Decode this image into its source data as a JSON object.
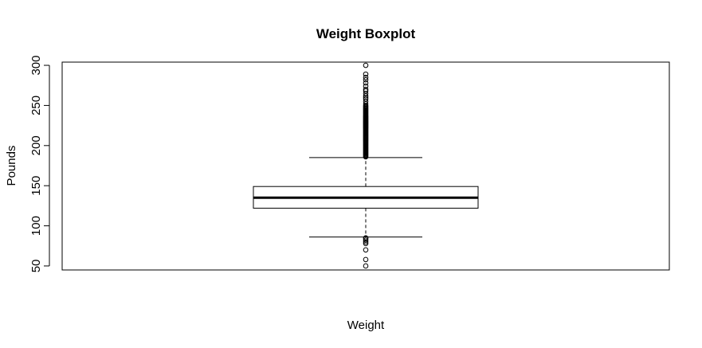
{
  "chart_data": {
    "type": "boxplot",
    "title": "Weight Boxplot",
    "xlabel": "Weight",
    "ylabel": "Pounds",
    "ylim": [
      45,
      304
    ],
    "yticks": [
      50,
      100,
      150,
      200,
      250,
      300
    ],
    "grid": false,
    "series": [
      {
        "whisker_low": 86,
        "q1": 122,
        "median": 135,
        "q3": 149,
        "whisker_high": 185,
        "outliers_low": [
          50,
          58,
          70,
          78,
          80,
          82,
          84,
          85
        ],
        "outliers_high": [
          186,
          187,
          188,
          189,
          190,
          191,
          192,
          193,
          194,
          195,
          196,
          197,
          198,
          199,
          200,
          201,
          202,
          203,
          204,
          205,
          206,
          207,
          208,
          209,
          210,
          211,
          212,
          213,
          214,
          215,
          216,
          217,
          218,
          219,
          220,
          221,
          222,
          223,
          224,
          225,
          226,
          227,
          228,
          229,
          230,
          231,
          232,
          233,
          234,
          235,
          236,
          237,
          238,
          239,
          240,
          241,
          242,
          243,
          244,
          245,
          246,
          247,
          248,
          249,
          250,
          252,
          255,
          258,
          260,
          262,
          265,
          268,
          270,
          274,
          278,
          282,
          285,
          289,
          300
        ]
      }
    ]
  },
  "colors": {
    "line": "#000000",
    "background": "#ffffff"
  }
}
